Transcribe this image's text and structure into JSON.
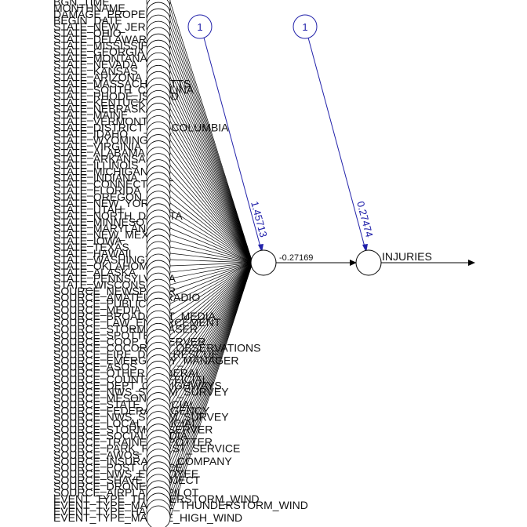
{
  "colors": {
    "edge": "#000000",
    "bias_edge": "#2222aa",
    "bias_text": "#1a1aa8",
    "node_fill": "#ffffff",
    "node_stroke": "#000000"
  },
  "input_labels": [
    "BGN_TIME",
    "MONTHNAME",
    "DAMAGE_PROPERTY",
    "BEGIN_DATE",
    "STATE_NEW_JERSEY",
    "STATE_OHIO",
    "STATE_DELAWARE",
    "STATE_MISSISSIPPI",
    "STATE_GEORGIA",
    "STATE_MONTANA",
    "STATE_NEVADA",
    "STATE_KANSAS",
    "STATE_ARIZONA",
    "STATE_MASSACHUSETTS",
    "STATE_SOUTH_CAROLINA",
    "STATE_RHODE_ISLAND",
    "STATE_KENTUCKY",
    "STATE_NEBRASKA",
    "STATE_MAINE",
    "STATE_VERMONT",
    "STATE_DISTRICT_OF_COLUMBIA",
    "STATE_IDAHO",
    "STATE_WYOMING",
    "STATE_VIRGINIA",
    "STATE_ALABAMA",
    "STATE_ARKANSAS",
    "STATE_ILLINOIS",
    "STATE_MICHIGAN",
    "STATE_INDIANA",
    "STATE_CONNECTICUT",
    "STATE_FLORIDA",
    "STATE_OREGON",
    "STATE_NEW_YORK",
    "STATE_UTAH",
    "STATE_NORTH_DAKOTA",
    "STATE_MINNESOTA",
    "STATE_MARYLAND",
    "STATE_NEW_MEXICO",
    "STATE_IOWA",
    "STATE_TEXAS",
    "STATE_HAWAII",
    "STATE_WASHINGTON",
    "STATE_OKLAHOMA",
    "STATE_ALASKA",
    "STATE_PENNSYLVANIA",
    "STATE_WISCONSIN",
    "SOURCE_NEWSPAPER",
    "SOURCE_AMATEUR_RADIO",
    "SOURCE_PUBLIC",
    "SOURCE_MEDIA",
    "SOURCE_BROADCAST_MEDIA",
    "SOURCE_LAW_ENFORCEMENT",
    "SOURCE_STORM_CHASER",
    "SOURCE_SPOTTER",
    "SOURCE_COOP_OBSERVER",
    "SOURCE_COCORAHS_OBSERVATIONS",
    "SOURCE_FIRE_DEPT_RESCUE",
    "SOURCE_EMERGENCY_MANAGER",
    "SOURCE_ASOS",
    "SOURCE_OTHER_FEDERAL",
    "SOURCE_COUNTY_OFFICIAL",
    "SOURCE_DEPT_OF_HIGHWAYS",
    "SOURCE_NWS_STORM_SURVEY",
    "SOURCE_MESONET",
    "SOURCE_STATE_OFFICIAL",
    "SOURCE_FEDERAL_AGENCY",
    "SOURCE_NWS_STORM_SURVEY",
    "SOURCE_LOCAL_OFFICIAL",
    "SOURCE_STORM_OBSERVER",
    "SOURCE_SOCIAL_MEDIA",
    "SOURCE_TRAINED_SPOTTER",
    "SOURCE_PARK_FOREST_SERVICE",
    "SOURCE_AWOS",
    "SOURCE_INSURANCE_COMPANY",
    "SOURCE_POST_OFFICE",
    "SOURCE_NWS_EMPLOYEE",
    "SOURCE_SHAVE_PROJECT",
    "SOURCE_DRONE",
    "SOURCE_AIRPLANE_PILOT",
    "EVENT_TYPE_THUNDERSTORM_WIND",
    "EVENT_TYPE_MARINE_THUNDERSTORM_WIND",
    "EVENT_TYPE_HAIL",
    "EVENT_TYPE_MARINE_HIGH_WIND"
  ],
  "bias_hidden": {
    "label": "1",
    "weight": "1.45713"
  },
  "bias_output": {
    "label": "1",
    "weight": "0.27474"
  },
  "hidden_to_output_weight": "-0.27169",
  "output_label": "INJURIES"
}
